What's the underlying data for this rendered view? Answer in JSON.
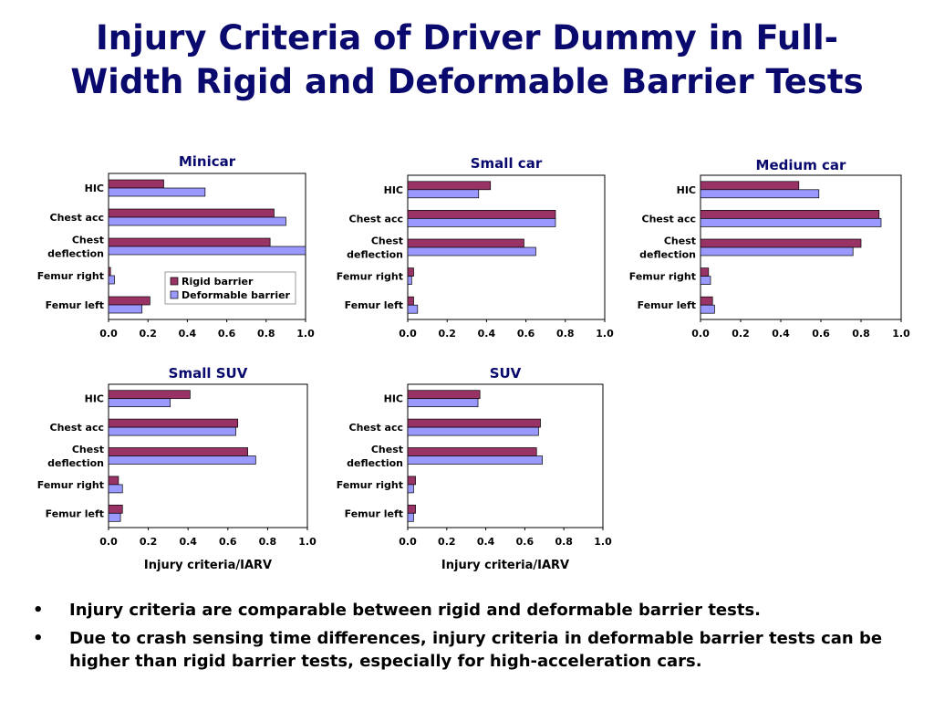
{
  "title": {
    "line1": "Injury Criteria of Driver Dummy in Full-",
    "line2": "Width Rigid and Deformable Barrier Tests"
  },
  "colors": {
    "title": "#0a0a6e",
    "rigid": "#993366",
    "deformable": "#9999ff"
  },
  "chart_data": [
    {
      "type": "bar",
      "orientation": "horizontal",
      "title": "Minicar",
      "categories": [
        "HIC",
        "Chest acc",
        "Chest\ndeflection",
        "Femur right",
        "Femur left"
      ],
      "series": [
        {
          "name": "Rigid barrier",
          "values": [
            0.28,
            0.84,
            0.82,
            0.01,
            0.21
          ]
        },
        {
          "name": "Deformable barrier",
          "values": [
            0.49,
            0.9,
            1.0,
            0.03,
            0.17
          ]
        }
      ],
      "xlim": [
        0,
        1.0
      ],
      "xticks": [
        "0.0",
        "0.2",
        "0.4",
        "0.6",
        "0.8",
        "1.0"
      ],
      "xlabel": "",
      "legend": "inside-bottom-right"
    },
    {
      "type": "bar",
      "orientation": "horizontal",
      "title": "Small car",
      "categories": [
        "HIC",
        "Chest acc",
        "Chest\ndeflection",
        "Femur right",
        "Femur left"
      ],
      "series": [
        {
          "name": "Rigid barrier",
          "values": [
            0.42,
            0.75,
            0.59,
            0.03,
            0.03
          ]
        },
        {
          "name": "Deformable barrier",
          "values": [
            0.36,
            0.75,
            0.65,
            0.02,
            0.05
          ]
        }
      ],
      "xlim": [
        0,
        1.0
      ],
      "xticks": [
        "0.0",
        "0.2",
        "0.4",
        "0.6",
        "0.8",
        "1.0"
      ],
      "xlabel": ""
    },
    {
      "type": "bar",
      "orientation": "horizontal",
      "title": "Medium car",
      "categories": [
        "HIC",
        "Chest acc",
        "Chest\ndeflection",
        "Femur right",
        "Femur left"
      ],
      "series": [
        {
          "name": "Rigid barrier",
          "values": [
            0.49,
            0.89,
            0.8,
            0.04,
            0.06
          ]
        },
        {
          "name": "Deformable barrier",
          "values": [
            0.59,
            0.9,
            0.76,
            0.05,
            0.07
          ]
        }
      ],
      "xlim": [
        0,
        1.0
      ],
      "xticks": [
        "0.0",
        "0.2",
        "0.4",
        "0.6",
        "0.8",
        "1.0"
      ],
      "xlabel": ""
    },
    {
      "type": "bar",
      "orientation": "horizontal",
      "title": "Small SUV",
      "categories": [
        "HIC",
        "Chest acc",
        "Chest\ndeflection",
        "Femur right",
        "Femur left"
      ],
      "series": [
        {
          "name": "Rigid barrier",
          "values": [
            0.41,
            0.65,
            0.7,
            0.05,
            0.07
          ]
        },
        {
          "name": "Deformable barrier",
          "values": [
            0.31,
            0.64,
            0.74,
            0.07,
            0.06
          ]
        }
      ],
      "xlim": [
        0,
        1.0
      ],
      "xticks": [
        "0.0",
        "0.2",
        "0.4",
        "0.6",
        "0.8",
        "1.0"
      ],
      "xlabel": "Injury criteria/IARV"
    },
    {
      "type": "bar",
      "orientation": "horizontal",
      "title": "SUV",
      "categories": [
        "HIC",
        "Chest acc",
        "Chest\ndeflection",
        "Femur right",
        "Femur left"
      ],
      "series": [
        {
          "name": "Rigid barrier",
          "values": [
            0.37,
            0.68,
            0.66,
            0.04,
            0.04
          ]
        },
        {
          "name": "Deformable barrier",
          "values": [
            0.36,
            0.67,
            0.69,
            0.03,
            0.03
          ]
        }
      ],
      "xlim": [
        0,
        1.0
      ],
      "xticks": [
        "0.0",
        "0.2",
        "0.4",
        "0.6",
        "0.8",
        "1.0"
      ],
      "xlabel": "Injury criteria/IARV"
    }
  ],
  "bullets": [
    "Injury criteria are comparable between rigid and deformable barrier tests.",
    "Due to crash sensing time differences, injury criteria in deformable barrier tests can be higher than rigid barrier tests, especially for high-acceleration cars."
  ],
  "bullet_symbol": "•"
}
